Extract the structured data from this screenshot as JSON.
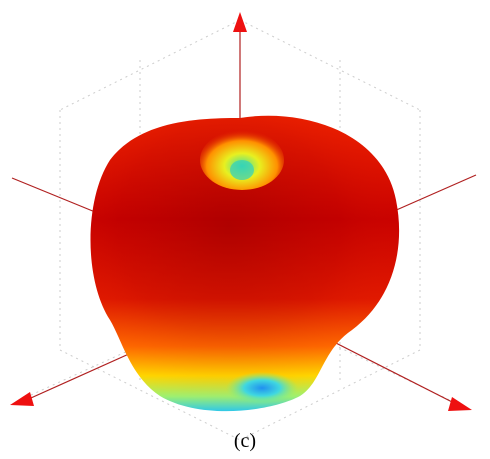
{
  "caption": "(c)"
}
